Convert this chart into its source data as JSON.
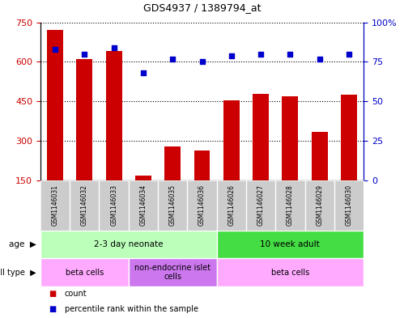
{
  "title": "GDS4937 / 1389794_at",
  "samples": [
    "GSM1146031",
    "GSM1146032",
    "GSM1146033",
    "GSM1146034",
    "GSM1146035",
    "GSM1146036",
    "GSM1146026",
    "GSM1146027",
    "GSM1146028",
    "GSM1146029",
    "GSM1146030"
  ],
  "counts": [
    720,
    610,
    640,
    170,
    280,
    265,
    455,
    480,
    470,
    335,
    475
  ],
  "percentiles": [
    83,
    80,
    84,
    68,
    77,
    75,
    79,
    80,
    80,
    77,
    80
  ],
  "ylim_left": [
    150,
    750
  ],
  "ylim_right": [
    0,
    100
  ],
  "yticks_left": [
    150,
    300,
    450,
    600,
    750
  ],
  "yticks_right": [
    0,
    25,
    50,
    75,
    100
  ],
  "bar_color": "#cc0000",
  "dot_color": "#0000cc",
  "age_groups": [
    {
      "label": "2-3 day neonate",
      "start": 0,
      "end": 6,
      "color": "#bbffbb"
    },
    {
      "label": "10 week adult",
      "start": 6,
      "end": 11,
      "color": "#44dd44"
    }
  ],
  "cell_type_groups": [
    {
      "label": "beta cells",
      "start": 0,
      "end": 3,
      "color": "#ffaaff"
    },
    {
      "label": "non-endocrine islet\ncells",
      "start": 3,
      "end": 6,
      "color": "#cc77ee"
    },
    {
      "label": "beta cells",
      "start": 6,
      "end": 11,
      "color": "#ffaaff"
    }
  ],
  "legend_count_color": "#cc0000",
  "legend_dot_color": "#0000cc",
  "right_axis_color": "#0000cc",
  "left_axis_color": "#cc0000",
  "label_bg_color": "#cccccc",
  "grid_linestyle": "dotted"
}
